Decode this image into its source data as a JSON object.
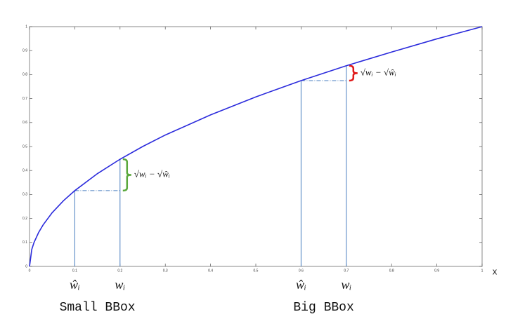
{
  "chart_data": {
    "type": "line",
    "x": [
      0,
      0.005,
      0.01,
      0.02,
      0.03,
      0.05,
      0.075,
      0.1,
      0.15,
      0.2,
      0.25,
      0.3,
      0.4,
      0.5,
      0.6,
      0.7,
      0.8,
      0.9,
      1
    ],
    "series": [
      {
        "color": "#2b2bdc",
        "values": [
          0,
          0.071,
          0.1,
          0.141,
          0.173,
          0.224,
          0.274,
          0.316,
          0.387,
          0.447,
          0.5,
          0.548,
          0.632,
          0.707,
          0.775,
          0.837,
          0.894,
          0.949,
          1
        ]
      }
    ],
    "xlim": [
      0,
      1
    ],
    "ylim": [
      0,
      1
    ],
    "xticks": [
      0,
      0.1,
      0.2,
      0.3,
      0.4,
      0.5,
      0.6,
      0.7,
      0.8,
      0.9,
      1
    ],
    "yticks": [
      0,
      0.1,
      0.2,
      0.3,
      0.4,
      0.5,
      0.6,
      0.7,
      0.8,
      0.9,
      1
    ],
    "xlabel": "x",
    "annotations": [
      {
        "x_hat": 0.1,
        "y_hat": 0.316,
        "x": 0.2,
        "y": 0.447,
        "hat_label": "ŵᵢ",
        "label": "wᵢ",
        "diff_label": "√wᵢ − √ŵᵢ",
        "group_label": "Small BBox",
        "color": "#5aa83c"
      },
      {
        "x_hat": 0.6,
        "y_hat": 0.775,
        "x": 0.7,
        "y": 0.837,
        "hat_label": "ŵᵢ",
        "label": "wᵢ",
        "diff_label": "√wᵢ − √ŵᵢ",
        "group_label": "Big BBox",
        "color": "#e01818"
      }
    ]
  }
}
